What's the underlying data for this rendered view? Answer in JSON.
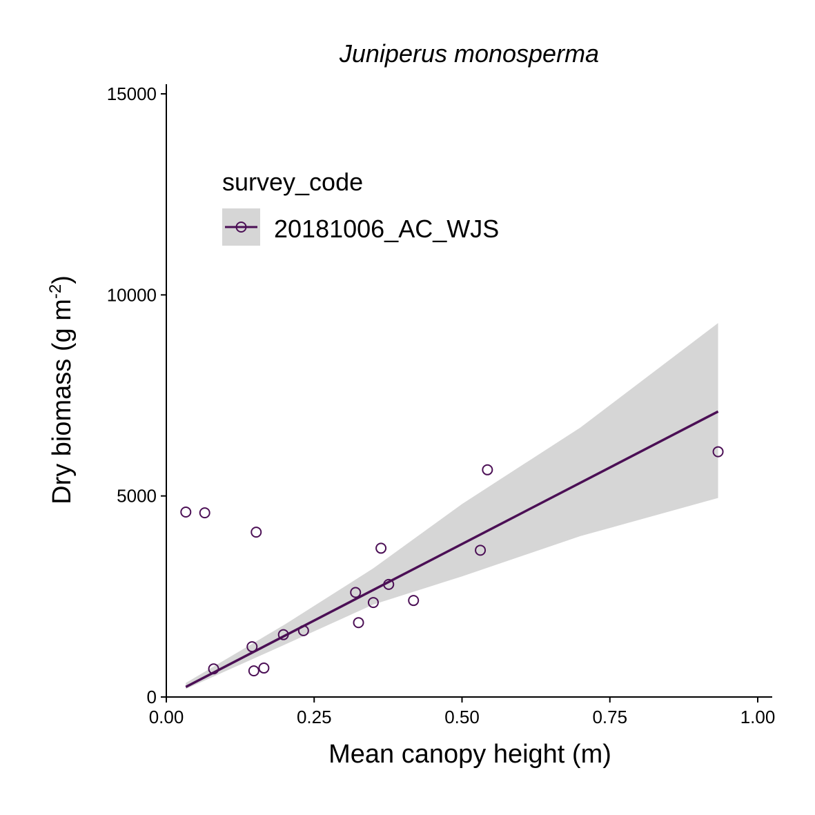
{
  "chart_data": {
    "type": "scatter",
    "title": "Juniperus monosperma",
    "xlabel": "Mean canopy height (m)",
    "ylabel_main": "Dry biomass (g m",
    "ylabel_sup": "-2",
    "ylabel_close": ")",
    "xlim": [
      0,
      1.0
    ],
    "ylim": [
      0,
      15000
    ],
    "x_ticks": [
      0,
      0.25,
      0.5,
      0.75,
      1.0
    ],
    "x_tick_labels": [
      "0.00",
      "0.25",
      "0.50",
      "0.75",
      "1.00"
    ],
    "y_ticks": [
      0,
      5000,
      10000,
      15000
    ],
    "y_tick_labels": [
      "0",
      "5000",
      "10000",
      "15000"
    ],
    "grid": false,
    "legend": {
      "title": "survey_code",
      "position": "top-left",
      "entries": [
        "20181006_AC_WJS"
      ]
    },
    "colors": {
      "series": "#4b0f55",
      "band": "#d6d6d6",
      "axis": "#000000"
    },
    "series": [
      {
        "name": "20181006_AC_WJS",
        "points": [
          {
            "x": 0.033,
            "y": 4600
          },
          {
            "x": 0.065,
            "y": 4580
          },
          {
            "x": 0.08,
            "y": 700
          },
          {
            "x": 0.145,
            "y": 1250
          },
          {
            "x": 0.148,
            "y": 650
          },
          {
            "x": 0.152,
            "y": 4100
          },
          {
            "x": 0.165,
            "y": 720
          },
          {
            "x": 0.198,
            "y": 1550
          },
          {
            "x": 0.232,
            "y": 1650
          },
          {
            "x": 0.32,
            "y": 2600
          },
          {
            "x": 0.325,
            "y": 1850
          },
          {
            "x": 0.35,
            "y": 2350
          },
          {
            "x": 0.363,
            "y": 3700
          },
          {
            "x": 0.376,
            "y": 2800
          },
          {
            "x": 0.418,
            "y": 2400
          },
          {
            "x": 0.531,
            "y": 3650
          },
          {
            "x": 0.543,
            "y": 5650
          },
          {
            "x": 0.933,
            "y": 6100
          }
        ],
        "fit_line": [
          {
            "x": 0.033,
            "y": 250
          },
          {
            "x": 0.933,
            "y": 7100
          }
        ],
        "confidence_band": [
          {
            "x": 0.033,
            "lower": 200,
            "upper": 350
          },
          {
            "x": 0.2,
            "lower": 1300,
            "upper": 1800
          },
          {
            "x": 0.35,
            "lower": 2300,
            "upper": 3200
          },
          {
            "x": 0.5,
            "lower": 3000,
            "upper": 4800
          },
          {
            "x": 0.7,
            "lower": 4000,
            "upper": 6700
          },
          {
            "x": 0.933,
            "lower": 4950,
            "upper": 9300
          }
        ]
      }
    ]
  }
}
